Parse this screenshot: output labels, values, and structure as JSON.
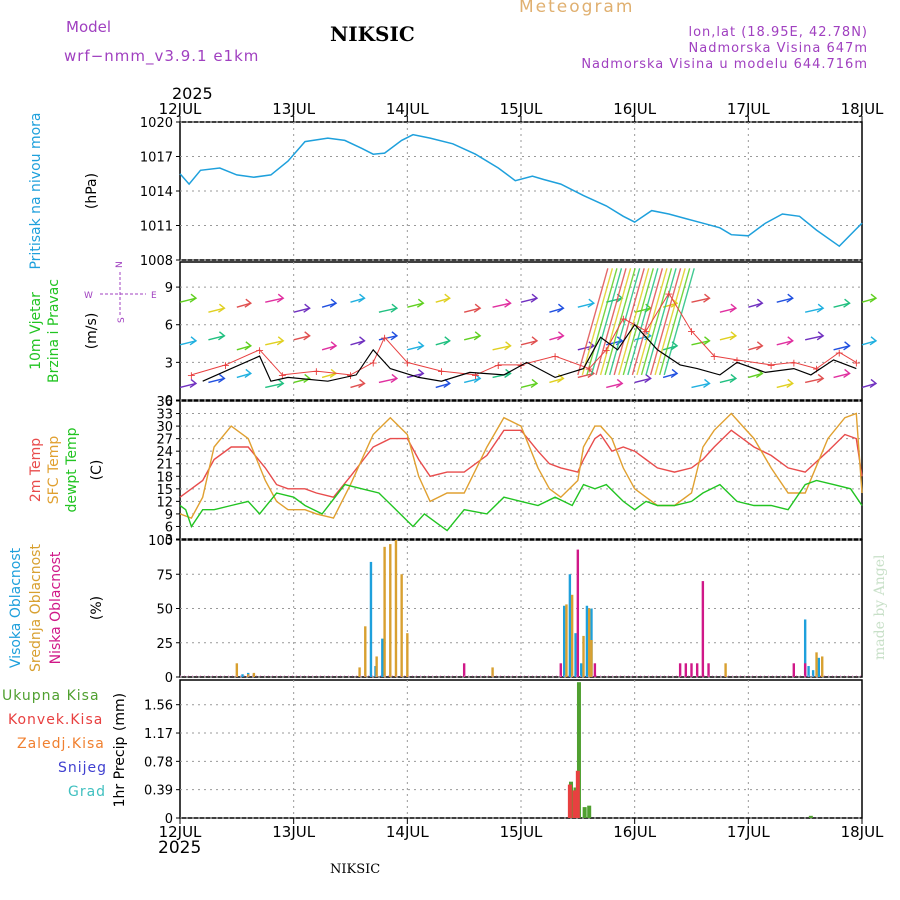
{
  "header": {
    "model_label": "Model",
    "model_name": "wrf−nmm_v3.9.1  e1km",
    "station": "NIKSIC",
    "title": "Meteogram",
    "coords": "lon,lat (18.95E, 42.78N)",
    "elevation": "Nadmorska Visina 647m",
    "model_elevation": "Nadmorska Visina u modelu 644.716m",
    "year": "2025",
    "footer_station": "NIKSIC",
    "credit": "made by Angel"
  },
  "colors": {
    "pressure": "#1ea0dc",
    "wind_speed": "#000000",
    "gust": "#e84040",
    "t2m": "#e84c4c",
    "tsfc": "#e0a030",
    "dewpt": "#22c422",
    "cloud_high": "#1ea0dc",
    "cloud_mid": "#d8a030",
    "cloud_low": "#d01888",
    "precip_total": "#50a030",
    "precip_conv": "#e84040",
    "precip_frozen": "#f08030",
    "precip_snow": "#4040d0",
    "precip_hail": "#40c0c0",
    "model_label": "#a040c0"
  },
  "chart_data": [
    {
      "id": "pressure",
      "type": "line",
      "title": "",
      "ylabel": "Pritisak na nivou mora",
      "unit": "(hPa)",
      "x_categories": [
        "12JUL",
        "13JUL",
        "14JUL",
        "15JUL",
        "16JUL",
        "17JUL",
        "18JUL"
      ],
      "ylim": [
        1008,
        1020
      ],
      "yticks": [
        1008,
        1011,
        1014,
        1017,
        1020
      ],
      "grid": true,
      "series": [
        {
          "x": [
            0,
            0.08,
            0.18,
            0.35,
            0.5,
            0.65,
            0.8,
            0.95,
            1.1,
            1.3,
            1.45,
            1.6,
            1.7,
            1.8,
            1.95,
            2.05,
            2.2,
            2.4,
            2.6,
            2.8,
            2.95,
            3.1,
            3.2,
            3.35,
            3.55,
            3.75,
            3.9,
            4.0,
            4.15,
            4.3,
            4.45,
            4.6,
            4.75,
            4.85,
            5.0,
            5.15,
            5.3,
            5.45,
            5.6,
            5.8,
            5.95,
            6.0
          ],
          "y": [
            1015.5,
            1014.6,
            1015.8,
            1016.0,
            1015.4,
            1015.2,
            1015.4,
            1016.6,
            1018.3,
            1018.6,
            1018.4,
            1017.7,
            1017.2,
            1017.3,
            1018.4,
            1018.9,
            1018.6,
            1018.1,
            1017.2,
            1016.0,
            1014.9,
            1015.3,
            1015.0,
            1014.6,
            1013.6,
            1012.7,
            1011.8,
            1011.3,
            1012.3,
            1012.0,
            1011.6,
            1011.2,
            1010.8,
            1010.2,
            1010.1,
            1011.2,
            1012.0,
            1011.8,
            1010.6,
            1009.2,
            1010.7,
            1011.2
          ]
        }
      ]
    },
    {
      "id": "wind",
      "type": "line",
      "title": "",
      "ylabel": "10m Vjetar Brzina i Pravac",
      "unit": "(m/s)",
      "ylim": [
        0,
        11
      ],
      "yticks": [
        0,
        3,
        6,
        9
      ],
      "grid": true,
      "compass": [
        "W",
        "E",
        "N",
        "S"
      ],
      "series": [
        {
          "name": "speed",
          "x": [
            0.2,
            0.45,
            0.7,
            0.8,
            0.95,
            1.3,
            1.55,
            1.7,
            1.85,
            2.1,
            2.3,
            2.55,
            2.85,
            3.05,
            3.3,
            3.55,
            3.7,
            3.85,
            4.0,
            4.2,
            4.4,
            4.55,
            4.75,
            4.9,
            5.15,
            5.4,
            5.55,
            5.75,
            5.95
          ],
          "y": [
            1.5,
            2.5,
            3.5,
            1.5,
            1.8,
            1.5,
            2.0,
            4.0,
            2.5,
            1.8,
            1.5,
            2.2,
            2.0,
            3.0,
            1.8,
            2.5,
            5.0,
            4.0,
            6.0,
            4.0,
            2.8,
            2.5,
            2.0,
            3.0,
            2.2,
            2.5,
            2.0,
            3.2,
            2.5
          ]
        },
        {
          "name": "gust",
          "x": [
            0.1,
            0.4,
            0.7,
            0.9,
            1.2,
            1.5,
            1.7,
            1.8,
            2.0,
            2.3,
            2.6,
            2.8,
            3.0,
            3.3,
            3.6,
            3.75,
            3.9,
            4.1,
            4.3,
            4.5,
            4.7,
            4.9,
            5.2,
            5.4,
            5.6,
            5.8,
            5.95
          ],
          "y": [
            2.0,
            2.8,
            4.0,
            2.0,
            2.3,
            2.0,
            3.0,
            5.0,
            3.0,
            2.3,
            2.0,
            2.8,
            2.8,
            3.5,
            2.5,
            4.0,
            6.5,
            5.5,
            8.5,
            5.5,
            3.5,
            3.2,
            2.8,
            3.0,
            2.5,
            3.8,
            3.0
          ]
        },
        {
          "name": "barbs",
          "x": [
            0,
            0.25,
            0.5,
            0.75,
            1.0,
            1.25,
            1.5,
            1.75,
            2.0,
            2.25,
            2.5,
            2.75,
            3.0,
            3.25,
            3.5,
            3.75,
            4.0,
            4.25,
            4.5,
            4.75,
            5.0,
            5.25,
            5.5,
            5.75,
            6.0
          ],
          "y": [
            5,
            5,
            4,
            6,
            5,
            4,
            4,
            6,
            5,
            4,
            5,
            6,
            5,
            4,
            5,
            9,
            9,
            8,
            6,
            5,
            4,
            5,
            6,
            5,
            4
          ]
        }
      ]
    },
    {
      "id": "temperature",
      "type": "line",
      "title": "",
      "ylabel": [
        "2m Temp",
        "SFC Temp",
        "dewpt Temp"
      ],
      "unit": "(C)",
      "ylim": [
        3,
        36
      ],
      "yticks": [
        3,
        6,
        9,
        12,
        15,
        18,
        21,
        24,
        27,
        30,
        33,
        36
      ],
      "grid": true,
      "series": [
        {
          "name": "2m Temp",
          "x": [
            0,
            0.1,
            0.2,
            0.3,
            0.45,
            0.6,
            0.75,
            0.85,
            0.95,
            1.1,
            1.2,
            1.35,
            1.5,
            1.7,
            1.85,
            2.0,
            2.1,
            2.2,
            2.35,
            2.5,
            2.7,
            2.85,
            3.0,
            3.15,
            3.25,
            3.35,
            3.5,
            3.55,
            3.65,
            3.7,
            3.8,
            3.9,
            4.0,
            4.1,
            4.2,
            4.35,
            4.5,
            4.6,
            4.7,
            4.85,
            4.95,
            5.05,
            5.2,
            5.35,
            5.5,
            5.7,
            5.85,
            5.95,
            6.0
          ],
          "y": [
            13,
            15,
            17,
            22,
            25,
            25,
            20,
            16,
            15,
            15,
            14,
            13,
            18,
            25,
            27,
            27,
            22,
            18,
            19,
            19,
            23,
            29,
            29,
            24,
            21,
            20,
            19,
            22,
            27,
            28,
            24,
            25,
            24,
            22,
            20,
            19,
            20,
            22,
            25,
            29,
            27,
            25,
            23,
            20,
            19,
            24,
            28,
            27,
            18
          ]
        },
        {
          "name": "SFC Temp",
          "x": [
            0,
            0.1,
            0.2,
            0.3,
            0.45,
            0.6,
            0.75,
            0.85,
            0.95,
            1.1,
            1.2,
            1.35,
            1.5,
            1.7,
            1.85,
            2.0,
            2.1,
            2.2,
            2.35,
            2.5,
            2.7,
            2.85,
            3.0,
            3.15,
            3.25,
            3.35,
            3.5,
            3.55,
            3.65,
            3.7,
            3.8,
            3.9,
            4.0,
            4.1,
            4.2,
            4.35,
            4.5,
            4.6,
            4.7,
            4.85,
            4.95,
            5.05,
            5.2,
            5.35,
            5.5,
            5.7,
            5.85,
            5.95,
            6.0
          ],
          "y": [
            9,
            8,
            13,
            25,
            30,
            27,
            17,
            12,
            10,
            10,
            9,
            8,
            16,
            28,
            32,
            28,
            18,
            12,
            14,
            14,
            25,
            32,
            30,
            20,
            15,
            13,
            17,
            25,
            30,
            30,
            27,
            20,
            15,
            13,
            11,
            11,
            14,
            25,
            29,
            33,
            30,
            27,
            20,
            14,
            14,
            27,
            32,
            33,
            14
          ]
        },
        {
          "name": "dewpt Temp",
          "x": [
            0,
            0.05,
            0.1,
            0.2,
            0.3,
            0.45,
            0.6,
            0.7,
            0.85,
            1.0,
            1.1,
            1.25,
            1.45,
            1.6,
            1.75,
            1.9,
            2.05,
            2.15,
            2.25,
            2.35,
            2.5,
            2.7,
            2.85,
            3.0,
            3.15,
            3.3,
            3.45,
            3.55,
            3.65,
            3.75,
            3.9,
            4.0,
            4.1,
            4.2,
            4.35,
            4.5,
            4.6,
            4.75,
            4.9,
            5.05,
            5.2,
            5.35,
            5.5,
            5.6,
            5.75,
            5.9,
            6.0
          ],
          "y": [
            11,
            10,
            6,
            10,
            10,
            11,
            12,
            9,
            14,
            13,
            11,
            9,
            16,
            15,
            14,
            10,
            6,
            9,
            7,
            5,
            10,
            9,
            13,
            12,
            11,
            13,
            11,
            16,
            15,
            16,
            12,
            10,
            12,
            11,
            11,
            12,
            14,
            16,
            12,
            11,
            11,
            10,
            16,
            17,
            16,
            15,
            11
          ]
        }
      ]
    },
    {
      "id": "cloud",
      "type": "bar",
      "title": "",
      "ylabel": [
        "Visoka Oblacnost",
        "Srednja Oblacnost",
        "Niska Oblacnost"
      ],
      "unit": "(%)",
      "ylim": [
        0,
        100
      ],
      "yticks": [
        0,
        25,
        50,
        75,
        100
      ],
      "grid": true,
      "series": [
        {
          "name": "Visoka Oblacnost",
          "x": [
            0.55,
            0.6,
            0.65,
            1.68,
            1.72,
            1.78,
            3.38,
            3.43,
            3.48,
            3.53,
            3.58,
            3.62,
            5.5,
            5.53,
            5.57,
            5.62
          ],
          "y": [
            2,
            3,
            2,
            84,
            8,
            28,
            52,
            75,
            32,
            10,
            52,
            50,
            42,
            8,
            5,
            14
          ]
        },
        {
          "name": "Srednja Oblacnost",
          "x": [
            0.5,
            0.6,
            0.65,
            1.58,
            1.63,
            1.73,
            1.8,
            1.85,
            1.9,
            1.95,
            2.0,
            2.75,
            3.4,
            3.45,
            3.55,
            3.6,
            3.62,
            4.8,
            5.6,
            5.65
          ],
          "y": [
            10,
            2,
            3,
            7,
            37,
            15,
            95,
            97,
            100,
            75,
            32,
            7,
            53,
            60,
            30,
            50,
            27,
            10,
            18,
            15
          ]
        },
        {
          "name": "Niska Oblacnost",
          "x": [
            2.5,
            3.35,
            3.5,
            3.65,
            4.4,
            4.45,
            4.5,
            4.55,
            4.6,
            4.65,
            5.4,
            5.5
          ],
          "y": [
            10,
            10,
            93,
            10,
            10,
            10,
            10,
            10,
            70,
            10,
            10,
            10
          ]
        }
      ]
    },
    {
      "id": "precip",
      "type": "bar",
      "title": "",
      "ylabel": "1hr Precip",
      "unit": "(mm)",
      "ylim": [
        0,
        1.9
      ],
      "yticks": [
        0,
        0.39,
        0.78,
        1.17,
        1.56
      ],
      "grid": true,
      "legend": [
        "Ukupna Kisa",
        "Konvek.Kisa",
        "Zaledj.Kisa",
        "Snijeg",
        "Grad"
      ],
      "series": [
        {
          "name": "Ukupna Kisa",
          "x": [
            3.44,
            3.48,
            3.51,
            3.56,
            3.6,
            5.55
          ],
          "y": [
            0.5,
            0.42,
            1.87,
            0.15,
            0.17,
            0.03
          ]
        },
        {
          "name": "Konvek.Kisa",
          "x": [
            3.43,
            3.47,
            3.5
          ],
          "y": [
            0.46,
            0.38,
            0.65
          ]
        }
      ]
    }
  ]
}
